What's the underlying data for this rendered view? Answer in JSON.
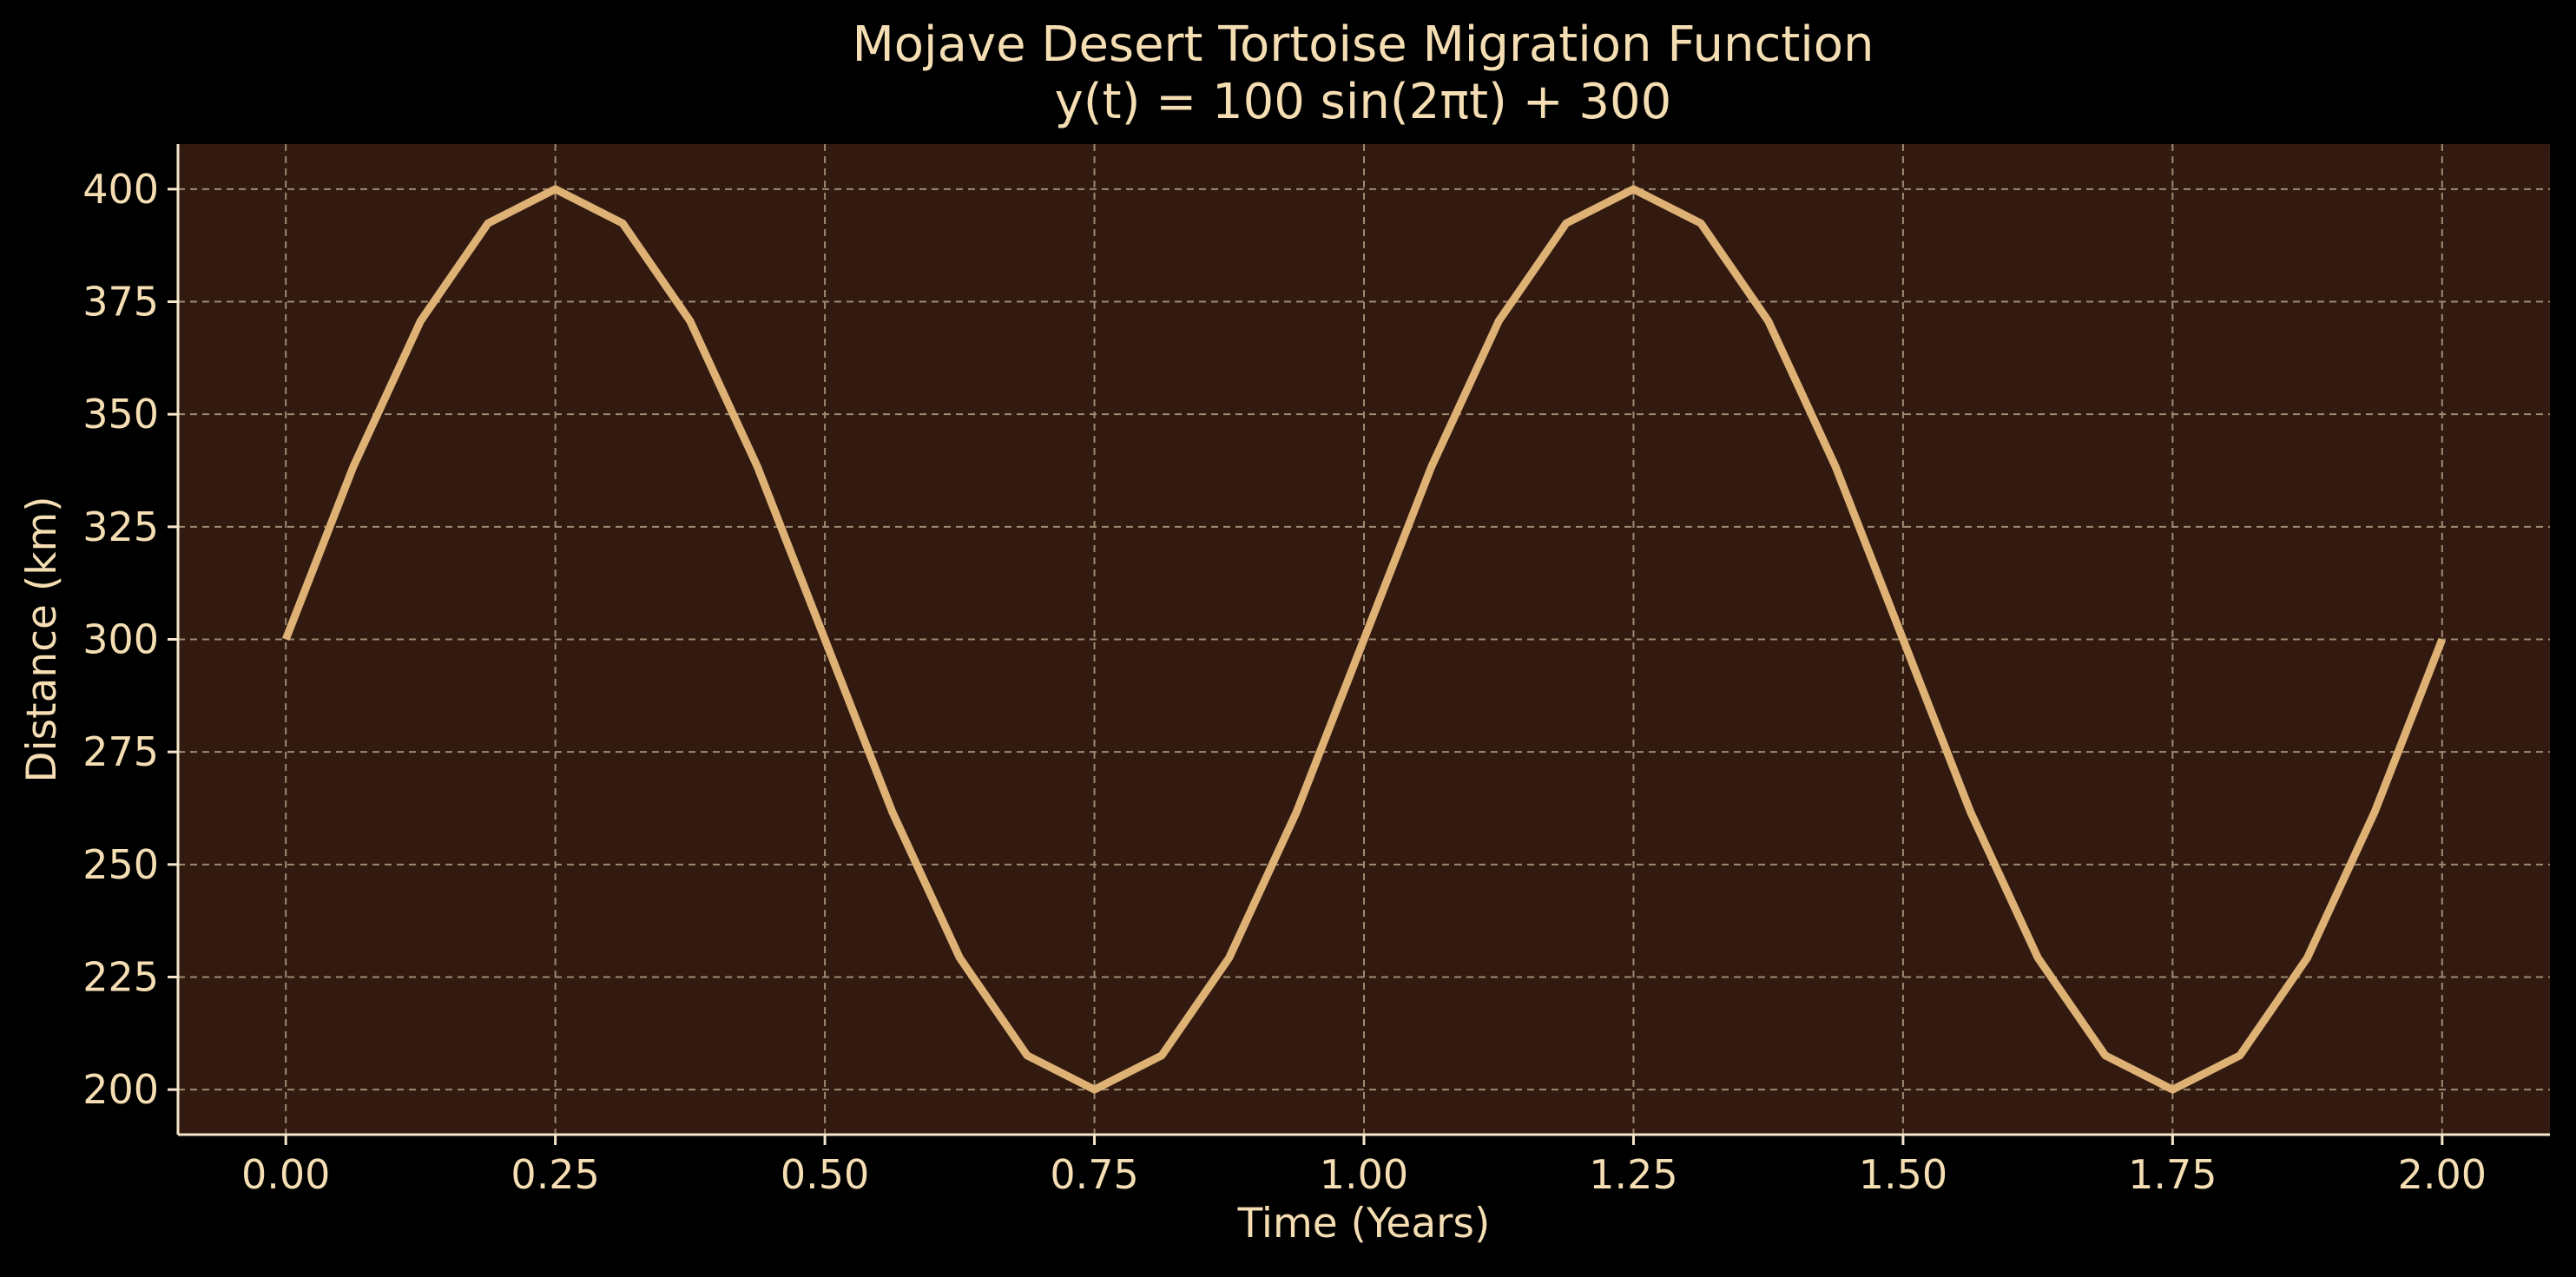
{
  "chart_data": {
    "type": "line",
    "title": "Mojave Desert Tortoise Migration Function",
    "subtitle": "y(t) = 100 sin(2πt) + 300",
    "xlabel": "Time (Years)",
    "ylabel": "Distance (km)",
    "xlim": [
      -0.1,
      2.1
    ],
    "ylim": [
      190,
      410
    ],
    "x_ticks": [
      0.0,
      0.25,
      0.5,
      0.75,
      1.0,
      1.25,
      1.5,
      1.75,
      2.0
    ],
    "x_tick_labels": [
      "0.00",
      "0.25",
      "0.50",
      "0.75",
      "1.00",
      "1.25",
      "1.50",
      "1.75",
      "2.00"
    ],
    "y_ticks": [
      200,
      225,
      250,
      275,
      300,
      325,
      350,
      375,
      400
    ],
    "y_tick_labels": [
      "200",
      "225",
      "250",
      "275",
      "300",
      "325",
      "350",
      "375",
      "400"
    ],
    "grid": true,
    "series": [
      {
        "x": [
          0.0,
          0.0625,
          0.125,
          0.1875,
          0.25,
          0.3125,
          0.375,
          0.4375,
          0.5,
          0.5625,
          0.625,
          0.6875,
          0.75,
          0.8125,
          0.875,
          0.9375,
          1.0,
          1.0625,
          1.125,
          1.1875,
          1.25,
          1.3125,
          1.375,
          1.4375,
          1.5,
          1.5625,
          1.625,
          1.6875,
          1.75,
          1.8125,
          1.875,
          1.9375,
          2.0
        ],
        "y": [
          300.0,
          338.3,
          370.7,
          392.4,
          400.0,
          392.4,
          370.7,
          338.3,
          300.0,
          261.7,
          229.3,
          207.6,
          200.0,
          207.6,
          229.3,
          261.7,
          300.0,
          338.3,
          370.7,
          392.4,
          400.0,
          392.4,
          370.7,
          338.3,
          300.0,
          261.7,
          229.3,
          207.6,
          200.0,
          207.6,
          229.3,
          261.7,
          300.0
        ]
      }
    ],
    "colors": {
      "background": "#000000",
      "plot_background": "#331a10",
      "line": "#deb175",
      "text": "#f5deb3",
      "grid": "#9c8a72",
      "spine": "#f5e6cc"
    }
  }
}
